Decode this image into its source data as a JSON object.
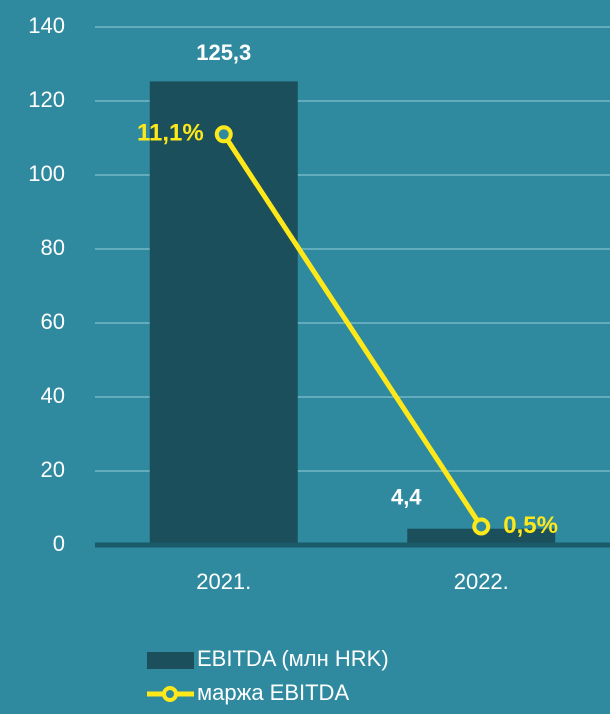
{
  "chart_data": {
    "type": "bar",
    "categories": [
      "2021.",
      "2022."
    ],
    "series": [
      {
        "name": "EBITDA (млн HRK)",
        "color": "#1b4f5c",
        "values": [
          125.3,
          4.4
        ],
        "value_labels": [
          "125,3",
          "4,4"
        ]
      },
      {
        "name": "маржа EBITDA",
        "type": "line",
        "axis": "y2",
        "color": "#ffe81a",
        "values": [
          11.1,
          0.5
        ],
        "value_labels": [
          "11,1%",
          "0,5%"
        ]
      }
    ],
    "ylim": [
      0,
      140
    ],
    "yticks": [
      0,
      20,
      40,
      60,
      80,
      100,
      120,
      140
    ],
    "y2lim": [
      0,
      14
    ],
    "grid": true,
    "legend": "bottom"
  }
}
